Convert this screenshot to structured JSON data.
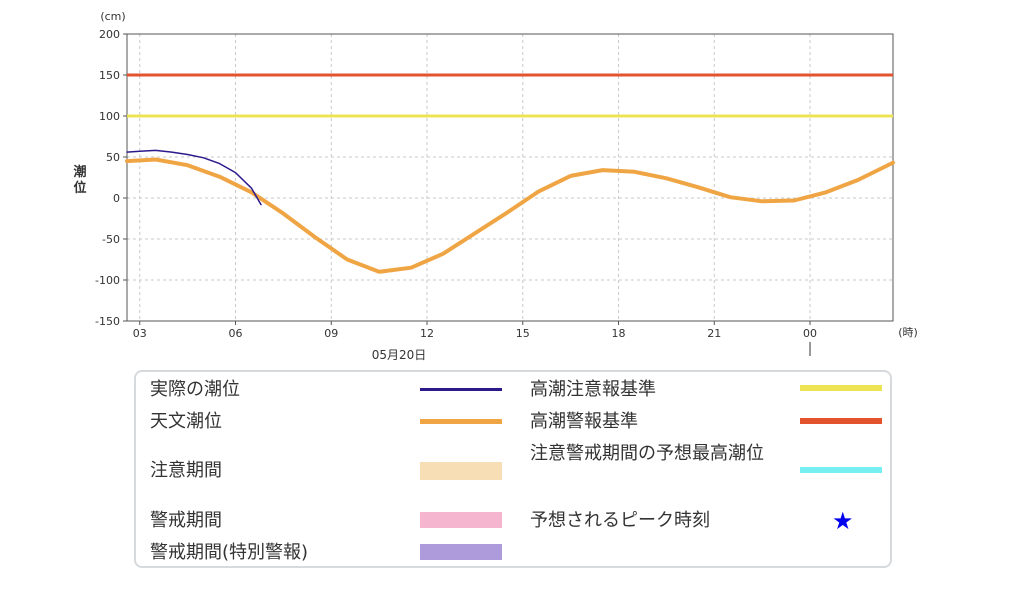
{
  "chart_data": {
    "type": "line",
    "y_unit": "(cm)",
    "ylabel": "潮位",
    "x_unit": "(時)",
    "date_label": "05月20日",
    "ylim": [
      -150,
      200
    ],
    "y_ticks": [
      200,
      150,
      100,
      50,
      0,
      -50,
      -100,
      -150
    ],
    "x_ticks": [
      "03",
      "06",
      "09",
      "12",
      "15",
      "18",
      "21",
      "00"
    ],
    "x_range_hours": [
      2.6,
      26.6
    ],
    "grid": true,
    "thresholds": [
      {
        "name": "高潮警報基準",
        "value": 150,
        "color": "#e2532e"
      },
      {
        "name": "高潮注意報基準",
        "value": 100,
        "color": "#ede454"
      }
    ],
    "series": [
      {
        "name": "天文潮位",
        "color": "#f0a544",
        "x": [
          2.6,
          3.5,
          4.5,
          5.5,
          6.5,
          7.5,
          8.5,
          9.5,
          10.5,
          11.5,
          12.5,
          13.5,
          14.5,
          15.5,
          16.5,
          17.5,
          18.5,
          19.5,
          20.5,
          21.5,
          22.5,
          23.5,
          24.5,
          25.5,
          26.6
        ],
        "values": [
          45,
          47,
          40,
          26,
          7,
          -19,
          -48,
          -75,
          -90,
          -85,
          -68,
          -43,
          -18,
          8,
          27,
          34,
          32,
          24,
          13,
          1,
          -4,
          -3,
          7,
          22,
          43
        ]
      },
      {
        "name": "実際の潮位",
        "color": "#2c1a8c",
        "x": [
          2.6,
          3.0,
          3.5,
          4.0,
          4.5,
          5.0,
          5.5,
          6.0,
          6.5,
          6.8
        ],
        "values": [
          56,
          57,
          58,
          56,
          53,
          49,
          42,
          31,
          12,
          -8
        ]
      }
    ]
  },
  "legend": {
    "items": [
      {
        "label": "実際の潮位",
        "kind": "line",
        "color": "#2c1a8c"
      },
      {
        "label": "天文潮位",
        "kind": "line",
        "color": "#f0a544"
      },
      {
        "label": "注意期間",
        "kind": "rect",
        "color": "#f8deb5"
      },
      {
        "label": "警戒期間",
        "kind": "rect",
        "color": "#f5b5cf"
      },
      {
        "label": "警戒期間(特別警報)",
        "kind": "rect",
        "color": "#ad9bdc"
      },
      {
        "label": "高潮注意報基準",
        "kind": "line",
        "color": "#ede454"
      },
      {
        "label": "高潮警報基準",
        "kind": "line",
        "color": "#e2532e"
      },
      {
        "label": "注意警戒期間の予想最高潮位",
        "kind": "line",
        "color": "#76eff1"
      },
      {
        "label": "予想されるピーク時刻",
        "kind": "star",
        "color": "#0000ee",
        "symbol": "★"
      }
    ]
  }
}
